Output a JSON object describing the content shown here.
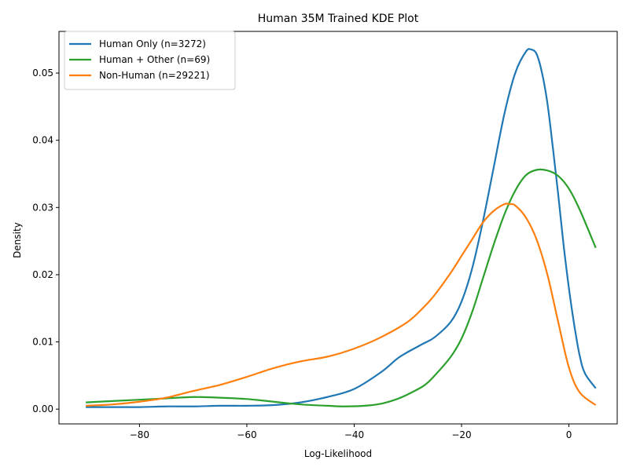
{
  "chart_data": {
    "type": "line",
    "title": "Human 35M Trained KDE Plot",
    "xlabel": "Log-Likelihood",
    "ylabel": "Density",
    "xlim": [
      -95,
      9
    ],
    "ylim": [
      -0.0022,
      0.0562
    ],
    "xticks": [
      -80,
      -60,
      -40,
      -20,
      0
    ],
    "xtick_labels": [
      "−80",
      "−60",
      "−40",
      "−20",
      "0"
    ],
    "yticks": [
      0.0,
      0.01,
      0.02,
      0.03,
      0.04,
      0.05
    ],
    "ytick_labels": [
      "0.00",
      "0.01",
      "0.02",
      "0.03",
      "0.04",
      "0.05"
    ],
    "grid": false,
    "legend_position": "top-left",
    "series": [
      {
        "name": "Human Only (n=3272)",
        "color": "#1f77b4",
        "x": [
          -90,
          -85,
          -80,
          -75,
          -70,
          -65,
          -60,
          -55,
          -50,
          -45,
          -40,
          -35,
          -32,
          -30,
          -27,
          -25,
          -22,
          -20,
          -18,
          -16,
          -14,
          -12,
          -10,
          -8,
          -7,
          -6,
          -5,
          -4,
          -3,
          -2,
          -1,
          0,
          1,
          2,
          3,
          5
        ],
        "y": [
          0.0003,
          0.0003,
          0.0003,
          0.0004,
          0.0004,
          0.0005,
          0.0005,
          0.0006,
          0.001,
          0.0018,
          0.003,
          0.0055,
          0.0075,
          0.0085,
          0.0098,
          0.0107,
          0.013,
          0.016,
          0.021,
          0.028,
          0.036,
          0.044,
          0.05,
          0.0532,
          0.0535,
          0.0528,
          0.05,
          0.0455,
          0.039,
          0.032,
          0.0245,
          0.018,
          0.0125,
          0.008,
          0.0053,
          0.0031
        ]
      },
      {
        "name": "Human + Other (n=69)",
        "color": "#2ca02c",
        "x": [
          -90,
          -85,
          -80,
          -75,
          -70,
          -65,
          -60,
          -55,
          -50,
          -45,
          -42,
          -38,
          -35,
          -32,
          -30,
          -27,
          -25,
          -22,
          -20,
          -18,
          -16,
          -14,
          -12,
          -10,
          -8,
          -6,
          -4,
          -2,
          0,
          2,
          5
        ],
        "y": [
          0.001,
          0.0012,
          0.0014,
          0.0016,
          0.0018,
          0.0017,
          0.0015,
          0.0011,
          0.0007,
          0.0005,
          0.0004,
          0.0005,
          0.0008,
          0.0015,
          0.0022,
          0.0035,
          0.005,
          0.0078,
          0.0105,
          0.0145,
          0.0195,
          0.0245,
          0.029,
          0.0325,
          0.0348,
          0.0356,
          0.0355,
          0.0347,
          0.0328,
          0.0297,
          0.024
        ]
      },
      {
        "name": "Non-Human (n=29221)",
        "color": "#ff7f0e",
        "x": [
          -90,
          -85,
          -80,
          -75,
          -70,
          -65,
          -60,
          -55,
          -50,
          -45,
          -40,
          -35,
          -30,
          -27,
          -25,
          -22,
          -20,
          -18,
          -16,
          -14,
          -12,
          -11,
          -10,
          -8,
          -6,
          -4,
          -2,
          0,
          2,
          5
        ],
        "y": [
          0.0005,
          0.0007,
          0.0011,
          0.0017,
          0.0027,
          0.0036,
          0.0048,
          0.0061,
          0.0071,
          0.0078,
          0.009,
          0.0107,
          0.013,
          0.0152,
          0.017,
          0.0203,
          0.0228,
          0.0253,
          0.0278,
          0.0295,
          0.0305,
          0.0305,
          0.0303,
          0.0285,
          0.0252,
          0.02,
          0.013,
          0.0062,
          0.0025,
          0.0006
        ]
      }
    ]
  }
}
